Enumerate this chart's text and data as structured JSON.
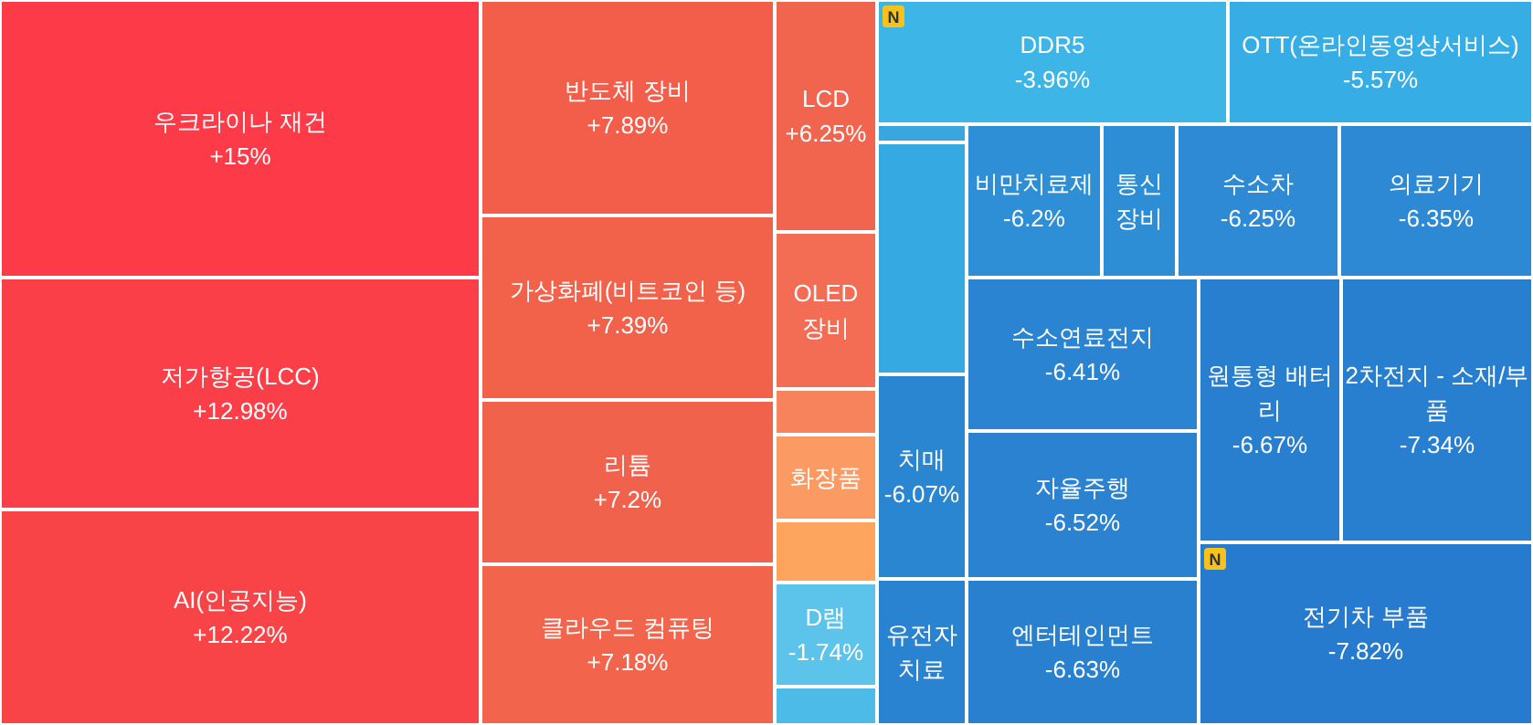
{
  "chart_data": {
    "type": "other",
    "categories": [
      "우크라이나 재건",
      "저가항공(LCC)",
      "AI(인공지능)",
      "반도체 장비",
      "가상화폐(비트코인 등)",
      "리튬",
      "클라우드 컴퓨팅",
      "LCD",
      "OLED 장비",
      null,
      "화장품",
      null,
      "D램",
      null,
      "DDR5",
      "OTT(온라인동영상서비스)",
      null,
      null,
      "비만치료제",
      "통신 장비",
      "수소차",
      "의료기기",
      "치매",
      "유전자치료",
      "수소연료전지",
      "자율주행",
      "엔터테인먼트",
      "원통형 배터리",
      "2차전지 - 소재/부품",
      "전기차 부품"
    ],
    "values": [
      15,
      12.98,
      12.22,
      7.89,
      7.39,
      7.2,
      7.18,
      6.25,
      null,
      null,
      null,
      null,
      -1.74,
      null,
      -3.96,
      -5.57,
      null,
      null,
      -6.2,
      null,
      -6.25,
      -6.35,
      -6.07,
      null,
      -6.41,
      -6.52,
      -6.63,
      -6.67,
      -7.34,
      -7.82
    ],
    "colors": [
      "#fd3a47",
      "#fb3f49",
      "#f84447",
      "#f25e4a",
      "#f2624b",
      "#f1624c",
      "#f2644c",
      "#f1654e",
      "#f36d54",
      "#f7835d",
      "#fb9a62",
      "#fda45f",
      "#5cc3ea",
      "#4dbbe8",
      "#3db5e6",
      "#36aee5",
      "#39a6e0",
      "#35a9e2",
      "#2e8fd6",
      "#2d8dd5",
      "#2e8ad4",
      "#2d89d3",
      "#2b86d2",
      "#2a83d1",
      "#2b84d2",
      "#2a82d0",
      "#2980cf",
      "#297fcf",
      "#287ecf",
      "#277bce"
    ],
    "value_labels": [
      "+15%",
      "+12.98%",
      "+12.22%",
      "+7.89%",
      "+7.39%",
      "+7.2%",
      "+7.18%",
      "+6.25%",
      null,
      null,
      null,
      null,
      "-1.74%",
      null,
      "-3.96%",
      "-5.57%",
      null,
      null,
      "-6.2%",
      null,
      "-6.25%",
      "-6.35%",
      "-6.07%",
      null,
      "-6.41%",
      "-6.52%",
      "-6.63%",
      "-6.67%",
      "-7.34%",
      "-7.82%"
    ],
    "annotations": [
      {
        "text": "N",
        "x": "DDR5"
      },
      {
        "text": "N",
        "x": "전기차 부품"
      }
    ]
  }
}
